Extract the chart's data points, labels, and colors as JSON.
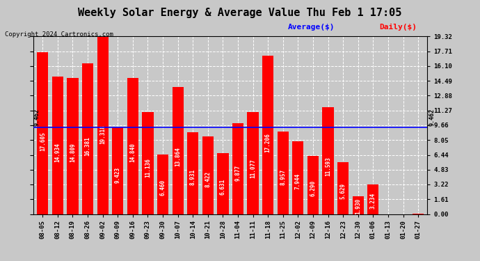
{
  "title": "Weekly Solar Energy & Average Value Thu Feb 1 17:05",
  "copyright": "Copyright 2024 Cartronics.com",
  "legend_avg": "Average($)",
  "legend_daily": "Daily($)",
  "average_value": 9.462,
  "average_label": "9.462",
  "categories": [
    "08-05",
    "08-12",
    "08-19",
    "08-26",
    "09-02",
    "09-09",
    "09-16",
    "09-23",
    "09-30",
    "10-07",
    "10-14",
    "10-21",
    "10-28",
    "11-04",
    "11-11",
    "11-18",
    "11-25",
    "12-02",
    "12-09",
    "12-16",
    "12-23",
    "12-30",
    "01-06",
    "01-13",
    "01-20",
    "01-27"
  ],
  "values": [
    17.605,
    14.934,
    14.809,
    16.381,
    19.318,
    9.423,
    14.84,
    11.136,
    6.46,
    13.864,
    8.931,
    8.422,
    6.631,
    9.877,
    11.077,
    17.206,
    8.957,
    7.944,
    6.29,
    11.593,
    5.629,
    1.93,
    3.234,
    0.0,
    0.0,
    0.013
  ],
  "bar_color": "#ff0000",
  "avg_line_color": "#0000ff",
  "background_color": "#c8c8c8",
  "plot_bg_color": "#c8c8c8",
  "yticks": [
    0.0,
    1.61,
    3.22,
    4.83,
    6.44,
    8.05,
    9.66,
    11.27,
    12.88,
    14.49,
    16.1,
    17.71,
    19.32
  ],
  "ylim": [
    0,
    19.32
  ],
  "title_fontsize": 11,
  "tick_fontsize": 6.5,
  "bar_label_fontsize": 5.5,
  "copyright_fontsize": 6.5,
  "legend_fontsize": 8,
  "avg_annotation_fontsize": 6
}
